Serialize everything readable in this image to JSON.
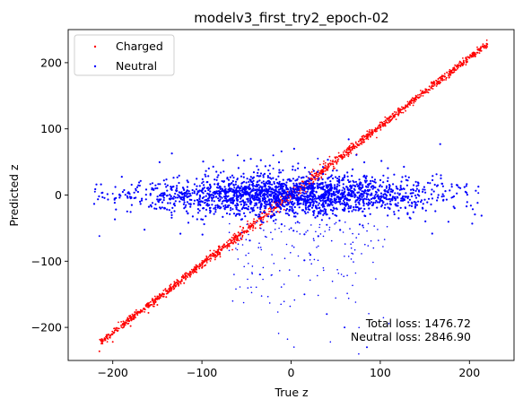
{
  "chart_data": {
    "type": "scatter",
    "title": "modelv3_first_try2_epoch-02",
    "xlabel": "True z",
    "ylabel": "Predicted z",
    "xlim": [
      -250,
      250
    ],
    "ylim": [
      -250,
      250
    ],
    "xticks": [
      -200,
      -100,
      0,
      100,
      200
    ],
    "yticks": [
      -200,
      -100,
      0,
      100,
      200
    ],
    "xtick_labels": [
      "−200",
      "−100",
      "0",
      "100",
      "200"
    ],
    "ytick_labels": [
      "−200",
      "−100",
      "0",
      "100",
      "200"
    ],
    "grid": false,
    "legend_position": "top-left",
    "series": [
      {
        "name": "Charged",
        "color": "#ff0000",
        "description_points": [
          [
            -215,
            -236
          ],
          [
            -200,
            -222
          ],
          [
            -180,
            -198
          ],
          [
            -160,
            -178
          ],
          [
            -150,
            -166
          ],
          [
            -140,
            -154
          ],
          [
            -120,
            -133
          ],
          [
            -100,
            -110
          ],
          [
            -80,
            -88
          ],
          [
            -60,
            -66
          ],
          [
            -40,
            -50
          ],
          [
            -20,
            -30
          ],
          [
            0,
            0
          ],
          [
            20,
            20
          ],
          [
            40,
            38
          ],
          [
            60,
            60
          ],
          [
            80,
            84
          ],
          [
            100,
            104
          ],
          [
            120,
            128
          ],
          [
            140,
            150
          ],
          [
            160,
            168
          ],
          [
            180,
            188
          ],
          [
            200,
            208
          ],
          [
            220,
            228
          ]
        ]
      },
      {
        "name": "Neutral",
        "color": "#0000ff",
        "description_points": [
          [
            -220,
            5
          ],
          [
            -200,
            2
          ],
          [
            -180,
            -5
          ],
          [
            -150,
            10
          ],
          [
            -120,
            -8
          ],
          [
            -100,
            18
          ],
          [
            -80,
            -20
          ],
          [
            -60,
            25
          ],
          [
            -40,
            -30
          ],
          [
            -20,
            40
          ],
          [
            0,
            -50
          ],
          [
            20,
            35
          ],
          [
            40,
            -45
          ],
          [
            60,
            30
          ],
          [
            80,
            -25
          ],
          [
            100,
            15
          ],
          [
            120,
            -12
          ],
          [
            150,
            8
          ],
          [
            180,
            -4
          ],
          [
            210,
            3
          ],
          [
            -35,
            -120
          ],
          [
            15,
            -150
          ],
          [
            40,
            -180
          ],
          [
            60,
            -200
          ],
          [
            85,
            -230
          ],
          [
            -60,
            60
          ],
          [
            -20,
            60
          ],
          [
            30,
            55
          ],
          [
            -215,
            -62
          ]
        ]
      }
    ]
  },
  "legend": {
    "charged_label": "Charged",
    "neutral_label": "Neutral"
  },
  "annotations": {
    "total_loss": "Total loss: 1476.72",
    "neutral_loss": "Neutral loss: 2846.90"
  }
}
